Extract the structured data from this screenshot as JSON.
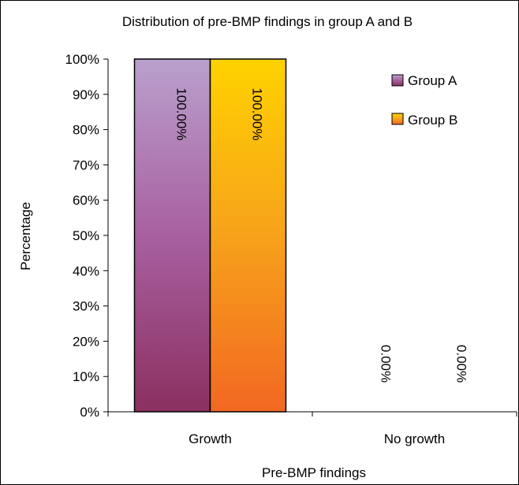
{
  "chart_data": {
    "type": "bar",
    "title": "Distribution of pre-BMP findings in group A and B",
    "xlabel": "Pre-BMP findings",
    "ylabel": "Percentage",
    "categories": [
      "Growth",
      "No growth"
    ],
    "ylim": [
      0,
      100
    ],
    "yticks": [
      "0%",
      "10%",
      "20%",
      "30%",
      "40%",
      "50%",
      "60%",
      "70%",
      "80%",
      "90%",
      "100%"
    ],
    "legend_position": "top-right",
    "grid": false,
    "series": [
      {
        "name": "Group A",
        "values": [
          100,
          0
        ],
        "labels": [
          "100.00%",
          "0.00%"
        ],
        "color_top": "#b9a0cc",
        "color_bottom": "#8b3060",
        "color_mid": "#a860a0"
      },
      {
        "name": "Group B",
        "values": [
          100,
          0
        ],
        "labels": [
          "100.00%",
          "0.00%"
        ],
        "color_top": "#ffd200",
        "color_bottom": "#f26822",
        "color_mid": "#f7a21b"
      }
    ]
  }
}
